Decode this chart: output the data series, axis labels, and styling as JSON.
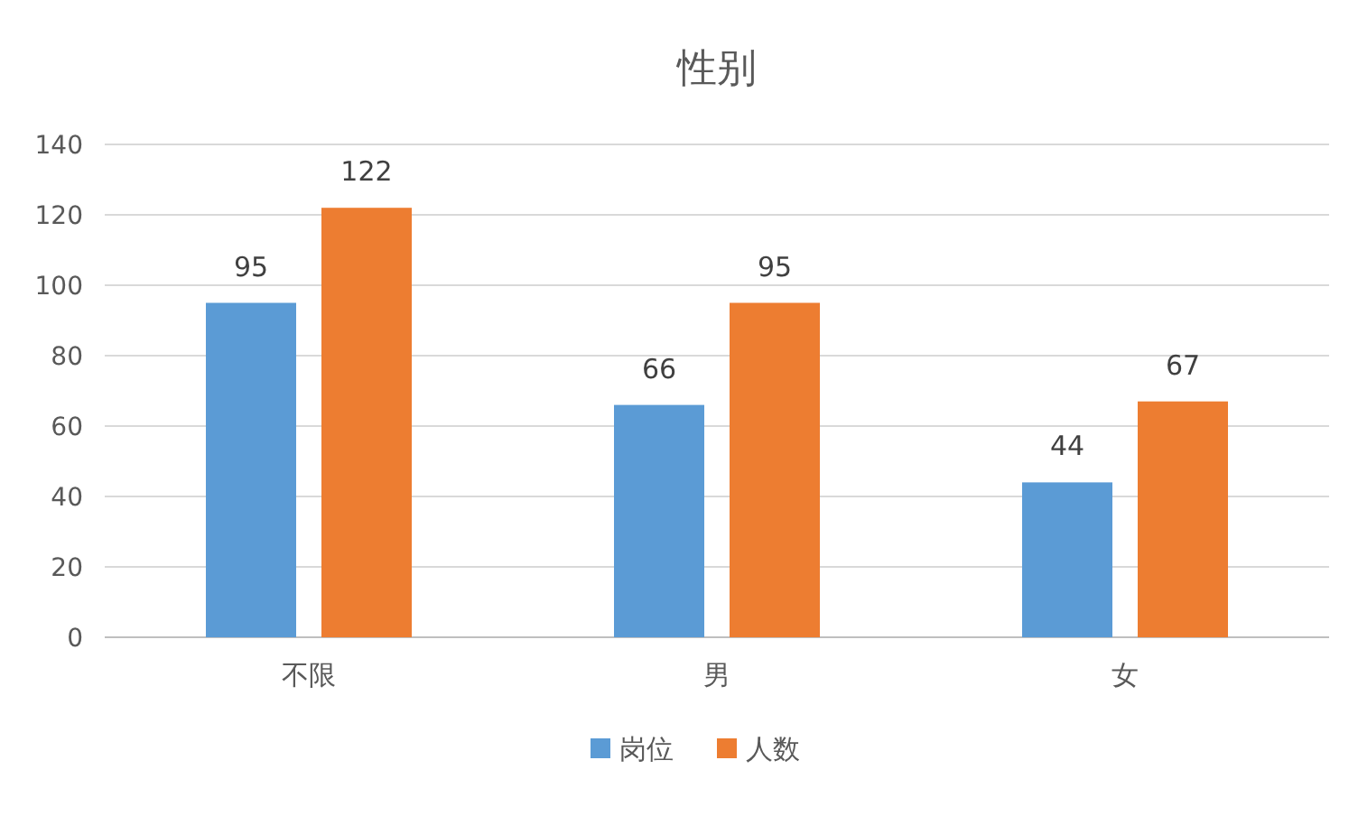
{
  "chart_data": {
    "type": "bar",
    "title": "性别",
    "categories": [
      "不限",
      "男",
      "女"
    ],
    "series": [
      {
        "name": "岗位",
        "color": "#5b9bd5",
        "values": [
          95,
          66,
          44
        ]
      },
      {
        "name": "人数",
        "color": "#ed7d31",
        "values": [
          122,
          95,
          67
        ]
      }
    ],
    "ylim": [
      0,
      140
    ],
    "yticks": [
      0,
      20,
      40,
      60,
      80,
      100,
      120,
      140
    ],
    "grid": "y",
    "data_labels": true,
    "legend": "bottom"
  }
}
